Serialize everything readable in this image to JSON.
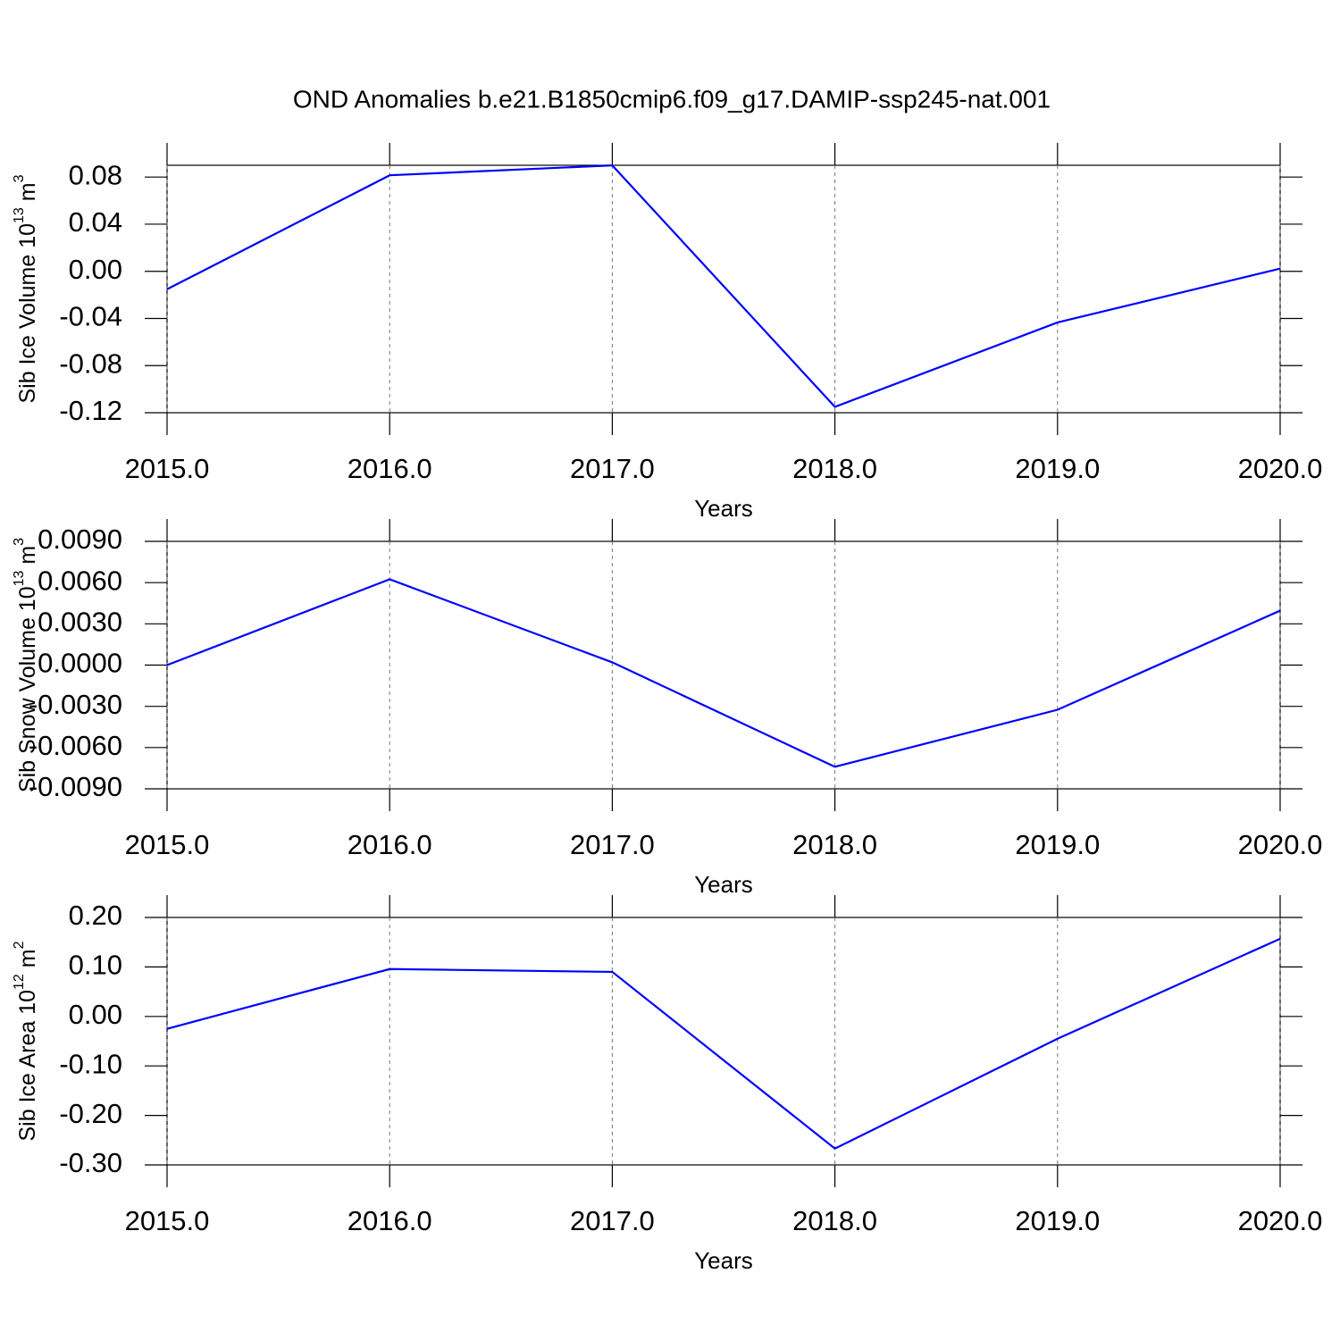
{
  "title": "OND Anomalies b.e21.B1850cmip6.f09_g17.DAMIP-ssp245-nat.001",
  "chart_data": [
    {
      "type": "line",
      "x": [
        2015,
        2016,
        2017,
        2018,
        2019,
        2020
      ],
      "series": [
        {
          "color": "#0000ff",
          "values": [
            -0.0152,
            0.0815,
            0.0899,
            -0.115,
            -0.0434,
            0.0023
          ]
        }
      ],
      "xlim": [
        2015,
        2020
      ],
      "xticks": [
        {
          "value": 2015,
          "label": "2015.0"
        },
        {
          "value": 2016,
          "label": "2016.0"
        },
        {
          "value": 2017,
          "label": "2017.0"
        },
        {
          "value": 2018,
          "label": "2018.0"
        },
        {
          "value": 2019,
          "label": "2019.0"
        },
        {
          "value": 2020,
          "label": "2020.0"
        }
      ],
      "ylim": [
        -0.12,
        0.09
      ],
      "yticks": [
        0.08,
        0.04,
        {
          "value": 0,
          "label": "0.00"
        },
        -0.04,
        -0.08,
        -0.12
      ],
      "x_label": "Years",
      "y_label": {
        "text": "Sib Ice Volume 10",
        "exponent": "13",
        "unit": " m",
        "unit_exponent": "3"
      },
      "grid": true
    },
    {
      "type": "line",
      "x": [
        2015,
        2016,
        2017,
        2018,
        2019,
        2020
      ],
      "series": [
        {
          "color": "#0000ff",
          "values": [
            0.0,
            0.00624,
            0.0002,
            -0.0074,
            -0.00325,
            0.00396
          ]
        }
      ],
      "xlim": [
        2015,
        2020
      ],
      "xticks": [
        {
          "value": 2015,
          "label": "2015.0"
        },
        {
          "value": 2016,
          "label": "2016.0"
        },
        {
          "value": 2017,
          "label": "2017.0"
        },
        {
          "value": 2018,
          "label": "2018.0"
        },
        {
          "value": 2019,
          "label": "2019.0"
        },
        {
          "value": 2020,
          "label": "2020.0"
        }
      ],
      "ylim": [
        -0.009,
        0.009
      ],
      "yticks": [
        {
          "value": 0.009,
          "label": "0.0090"
        },
        {
          "value": 0.006,
          "label": "0.0060"
        },
        {
          "value": 0.003,
          "label": "0.0030"
        },
        {
          "value": 0,
          "label": "0.0000"
        },
        {
          "value": -0.003,
          "label": "-0.0030"
        },
        {
          "value": -0.006,
          "label": "-0.0060"
        },
        {
          "value": -0.009,
          "label": "-0.0090"
        }
      ],
      "x_label": "Years",
      "y_label": {
        "text": "Sib Snow Volume 10",
        "exponent": "13",
        "unit": " m",
        "unit_exponent": "3"
      },
      "grid": true
    },
    {
      "type": "line",
      "x": [
        2015,
        2016,
        2017,
        2018,
        2019,
        2020
      ],
      "series": [
        {
          "color": "#0000ff",
          "values": [
            -0.025,
            0.0957,
            0.09,
            -0.267,
            -0.045,
            0.157
          ]
        }
      ],
      "xlim": [
        2015,
        2020
      ],
      "xticks": [
        {
          "value": 2015,
          "label": "2015.0"
        },
        {
          "value": 2016,
          "label": "2016.0"
        },
        {
          "value": 2017,
          "label": "2017.0"
        },
        {
          "value": 2018,
          "label": "2018.0"
        },
        {
          "value": 2019,
          "label": "2019.0"
        },
        {
          "value": 2020,
          "label": "2020.0"
        }
      ],
      "ylim": [
        -0.3,
        0.2
      ],
      "yticks": [
        {
          "value": 0.2,
          "label": "0.20"
        },
        {
          "value": 0.1,
          "label": "0.10"
        },
        {
          "value": 0,
          "label": "0.00"
        },
        {
          "value": -0.1,
          "label": "-0.10"
        },
        {
          "value": -0.2,
          "label": "-0.20"
        },
        {
          "value": -0.3,
          "label": "-0.30"
        }
      ],
      "x_label": "Years",
      "y_label": {
        "text": "Sib Ice Area 10",
        "exponent": "12",
        "unit": " m",
        "unit_exponent": "2"
      },
      "grid": true
    }
  ]
}
